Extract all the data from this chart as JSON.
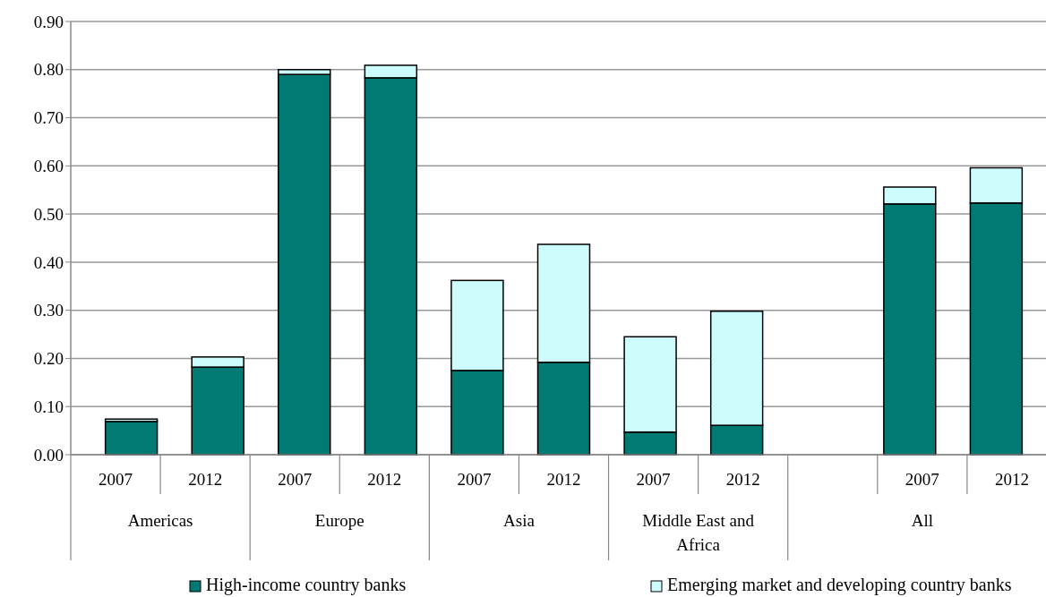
{
  "chart_data": {
    "type": "bar",
    "stacked": true,
    "categories": [
      "2007",
      "2012",
      "2007",
      "2012",
      "2007",
      "2012",
      "2007",
      "2012",
      null,
      "2007",
      "2012"
    ],
    "series": [
      {
        "name": "High-income country banks",
        "color": "#007a73",
        "values": [
          0.069,
          0.182,
          0.79,
          0.783,
          0.175,
          0.192,
          0.047,
          0.061,
          null,
          0.521,
          0.523
        ]
      },
      {
        "name": "Emerging market and developing country banks",
        "color": "#ccfcfc",
        "values": [
          0.005,
          0.021,
          0.01,
          0.026,
          0.187,
          0.245,
          0.198,
          0.237,
          null,
          0.035,
          0.073
        ]
      }
    ],
    "annotations": [
      "Americas",
      "Europe",
      "Asia",
      "Middle East and Africa",
      "All"
    ],
    "ylim": [
      0,
      0.9
    ],
    "yticks": [
      {
        "value": 0,
        "label": "0.00"
      },
      {
        "value": 0.1,
        "label": "0.10"
      },
      {
        "value": 0.2,
        "label": "0.20"
      },
      {
        "value": 0.3,
        "label": "0.30"
      },
      {
        "value": 0.4,
        "label": "0.40"
      },
      {
        "value": 0.5,
        "label": "0.50"
      },
      {
        "value": 0.6,
        "label": "0.60"
      },
      {
        "value": 0.7,
        "label": "0.70"
      },
      {
        "value": 0.8,
        "label": "0.80"
      },
      {
        "value": 0.9,
        "label": "0.90"
      }
    ],
    "grid": true,
    "legend": "bottom"
  }
}
